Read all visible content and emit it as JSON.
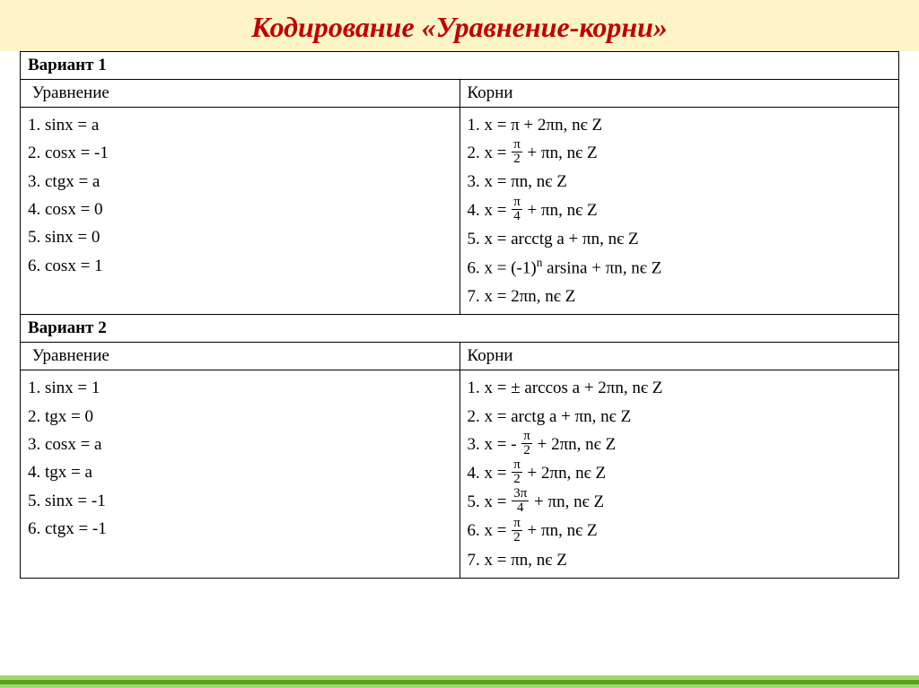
{
  "title": "Кодирование «Уравнение-корни»",
  "colors": {
    "title": "#c00000",
    "header_bg": "#fdf5c7",
    "col_header": "#003399",
    "border": "#000000",
    "text": "#000000",
    "stripe_light": "#a3d86e",
    "stripe_dark": "#5aa022"
  },
  "fontsize": {
    "title": 32,
    "body": 19,
    "frac": 15
  },
  "variants": [
    {
      "label": "Вариант 1",
      "col_left": "Уравнение",
      "col_right": "Корни",
      "equations": [
        "1.  sinx = a",
        "2. cosx = -1",
        "3. ctgx = a",
        "4. cosx = 0",
        "5. sinx = 0",
        "6. cosx = 1"
      ],
      "roots": [
        {
          "text": "1. x = π + 2πn, nє Z"
        },
        {
          "prefix": "2. x = ",
          "frac": {
            "num": "π",
            "den": "2"
          },
          "suffix": " + πn, nє Z"
        },
        {
          "text": "3. x = πn, nє Z"
        },
        {
          "prefix": "4. x = ",
          "frac": {
            "num": "π",
            "den": "4"
          },
          "suffix": "  + πn, nє Z"
        },
        {
          "text": "5. x = arcctg a + πn, nє Z"
        },
        {
          "html": "6. x = (-1)<sup>n</sup> arsina + πn, nє Z"
        },
        {
          "text": "7.  x = 2πn, nє Z"
        }
      ]
    },
    {
      "label": "Вариант 2",
      "col_left": "Уравнение",
      "col_right": "Корни",
      "equations": [
        "1. sinx = 1",
        "2. tgx = 0",
        "3.  cosx = a",
        "4. tgx = a",
        "5. sinx = -1",
        "6. ctgx = -1"
      ],
      "roots": [
        {
          "text": "1. x = ± arccos a + 2πn, nє Z"
        },
        {
          "text": "2. x = arctg a + πn, nє Z"
        },
        {
          "prefix": "3. x = - ",
          "frac": {
            "num": "π",
            "den": "2"
          },
          "suffix": "  + 2πn, nє Z"
        },
        {
          "prefix": "4. x =  ",
          "frac": {
            "num": "π",
            "den": "2"
          },
          "suffix": " + 2πn, nє Z"
        },
        {
          "prefix": "5. x  =  ",
          "frac": {
            "num": "3π",
            "den": "4"
          },
          "suffix": "  + πn, nє Z"
        },
        {
          "prefix": "6. x = ",
          "frac": {
            "num": "π",
            "den": "2"
          },
          "suffix": " + πn, nє Z"
        },
        {
          "text": "7. x = πn, nє Z"
        }
      ]
    }
  ]
}
